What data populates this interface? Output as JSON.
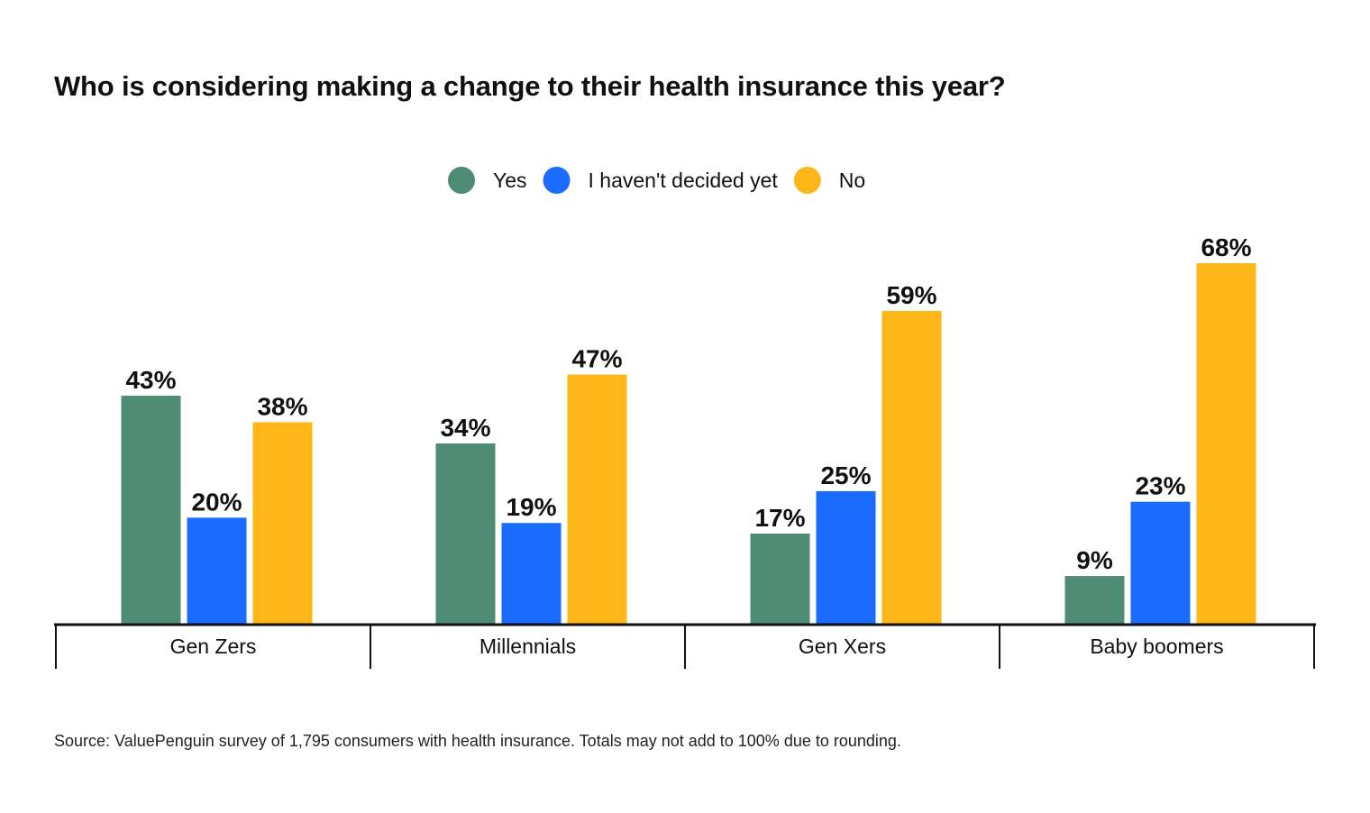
{
  "chart_data": {
    "type": "bar",
    "title": "Who is considering making a change to their health insurance this year?",
    "categories": [
      "Gen Zers",
      "Millennials",
      "Gen Xers",
      "Baby boomers"
    ],
    "series": [
      {
        "name": "Yes",
        "color": "#4e8c74",
        "values": [
          43,
          34,
          17,
          9
        ]
      },
      {
        "name": "I haven't decided yet",
        "color": "#1a6bff",
        "values": [
          20,
          19,
          25,
          23
        ]
      },
      {
        "name": "No",
        "color": "#ffb619",
        "values": [
          38,
          47,
          59,
          68
        ]
      }
    ],
    "value_suffix": "%",
    "ylim": [
      0,
      70
    ],
    "grid": false,
    "y_axis_shown": false,
    "legend_position": "top-center",
    "source": "Source: ValuePenguin survey of 1,795 consumers with health insurance. Totals may not add to 100% due to rounding."
  }
}
